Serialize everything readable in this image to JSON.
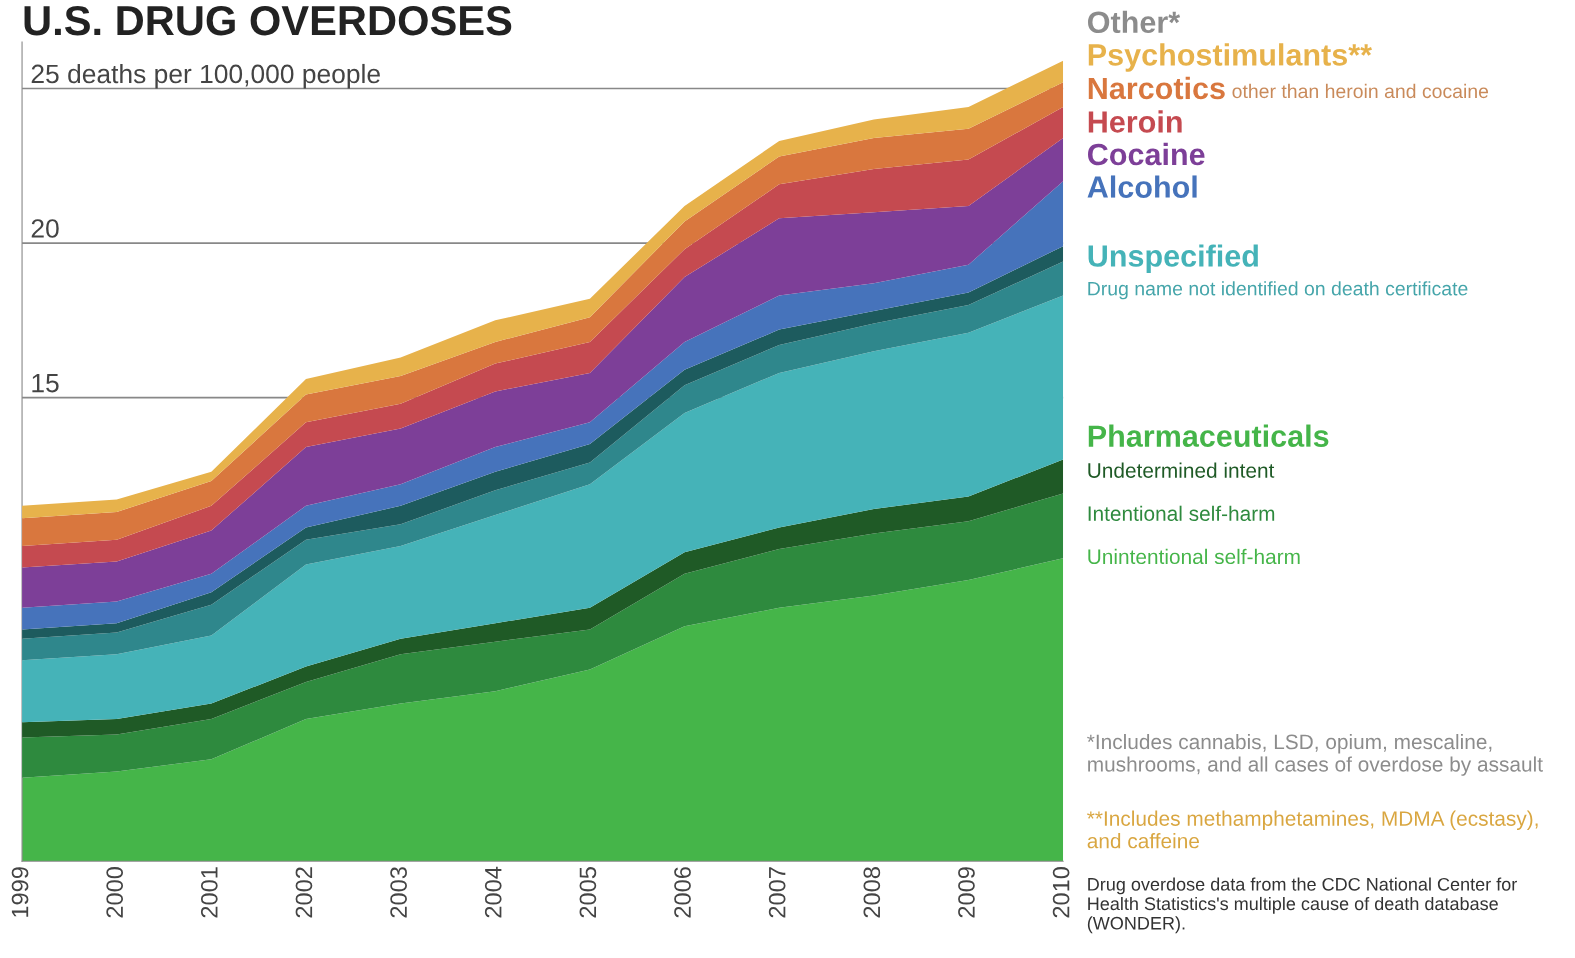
{
  "chart_data": {
    "type": "area",
    "stacked": true,
    "title": "U.S. DRUG OVERDOSES",
    "categories": [
      "1999",
      "2000",
      "2001",
      "2002",
      "2003",
      "2004",
      "2005",
      "2006",
      "2007",
      "2008",
      "2009",
      "2010"
    ],
    "ylim": [
      0,
      26.5
    ],
    "yticks": [
      15,
      20,
      {
        "value": 25,
        "label": "25 deaths per 100,000 people"
      }
    ],
    "grid": "y",
    "legend": "right",
    "series": [
      {
        "name": "Unintentional self-harm",
        "color": "#45b549",
        "values": [
          2.7,
          2.9,
          3.3,
          4.6,
          5.1,
          5.5,
          6.2,
          7.6,
          8.2,
          8.6,
          9.1,
          9.8
        ]
      },
      {
        "name": "Intentional self-harm",
        "color": "#2e8a3e",
        "values": [
          1.3,
          1.2,
          1.3,
          1.2,
          1.6,
          1.6,
          1.3,
          1.7,
          1.9,
          2.0,
          1.9,
          2.1
        ]
      },
      {
        "name": "Undetermined intent",
        "color": "#1f5a26",
        "values": [
          0.5,
          0.5,
          0.5,
          0.5,
          0.5,
          0.6,
          0.7,
          0.7,
          0.7,
          0.8,
          0.8,
          1.1
        ]
      },
      {
        "name": "Unspecified",
        "color": "#45b3b8",
        "values": [
          2.0,
          2.1,
          2.2,
          3.3,
          3.0,
          3.5,
          4.0,
          4.5,
          5.0,
          5.1,
          5.3,
          5.3
        ]
      },
      {
        "color": "#2f878c",
        "values": [
          0.7,
          0.7,
          1.0,
          0.8,
          0.7,
          0.8,
          0.7,
          0.9,
          0.9,
          0.9,
          0.9,
          1.1
        ]
      },
      {
        "color": "#1d5b5e",
        "values": [
          0.3,
          0.3,
          0.4,
          0.4,
          0.6,
          0.6,
          0.6,
          0.5,
          0.5,
          0.4,
          0.4,
          0.5
        ]
      },
      {
        "name": "Alcohol",
        "color": "#4673bb",
        "values": [
          0.7,
          0.7,
          0.6,
          0.7,
          0.7,
          0.8,
          0.7,
          0.9,
          1.1,
          0.9,
          0.9,
          2.1
        ]
      },
      {
        "name": "Cocaine",
        "color": "#7d3f98",
        "values": [
          1.3,
          1.3,
          1.4,
          1.9,
          1.8,
          1.8,
          1.6,
          2.1,
          2.5,
          2.3,
          1.9,
          1.4
        ]
      },
      {
        "name": "Heroin",
        "color": "#c54a50",
        "values": [
          0.7,
          0.7,
          0.8,
          0.8,
          0.8,
          0.9,
          1.0,
          0.9,
          1.1,
          1.4,
          1.5,
          1.0
        ]
      },
      {
        "name": "Narcotics",
        "color": "#d9773e",
        "values": [
          0.9,
          0.9,
          0.8,
          0.9,
          0.9,
          0.7,
          0.8,
          0.9,
          0.9,
          1.0,
          1.0,
          0.8
        ]
      },
      {
        "name": "Psychostimulants**",
        "color": "#e7b24b",
        "values": [
          0.4,
          0.4,
          0.3,
          0.5,
          0.6,
          0.7,
          0.6,
          0.5,
          0.5,
          0.6,
          0.7,
          0.7
        ]
      }
    ],
    "annotations": [
      "Other*",
      "other than heroin and cocaine",
      "Drug name not identified on death certificate",
      "Pharmaceuticals",
      "*Includes cannabis, LSD, opium, mescaline, mushrooms, and all cases of overdose by assault",
      "**Includes methamphetamines, MDMA (ecstasy), and caffeine",
      "Drug overdose data from the CDC National Center for Health Statistics's multiple cause of death database (WONDER)."
    ]
  }
}
